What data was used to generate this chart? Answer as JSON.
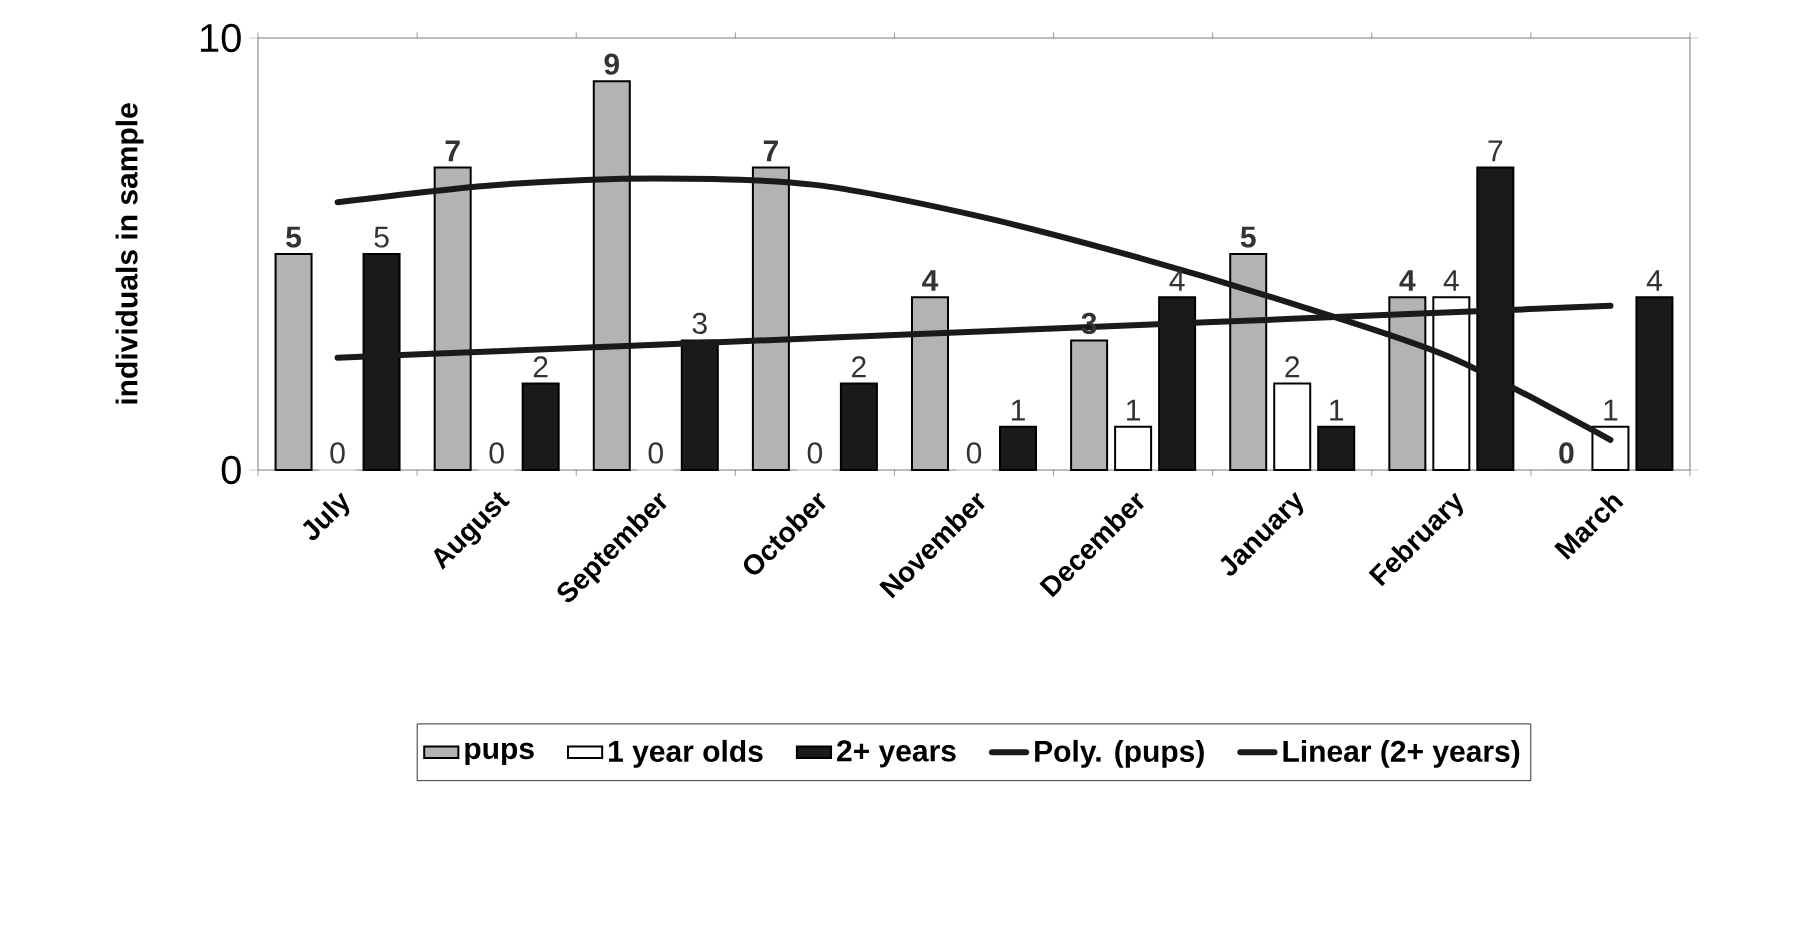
{
  "chart_data": {
    "type": "bar",
    "ylabel": "individuals in sample",
    "categories": [
      "July",
      "August",
      "September",
      "October",
      "November",
      "December",
      "January",
      "February",
      "March"
    ],
    "series": [
      {
        "name": "pups",
        "color": "#b3b3b3",
        "values": [
          5,
          7,
          9,
          7,
          4,
          3,
          5,
          4,
          0
        ],
        "value_labels": [
          "5",
          "7",
          "9",
          "7",
          "4",
          "3",
          "5",
          "4",
          "0"
        ]
      },
      {
        "name": "1 year olds",
        "color": "#ffffff",
        "values": [
          0,
          0,
          0,
          0,
          0,
          1,
          2,
          4,
          1
        ],
        "value_labels": [
          "0",
          "0",
          "0",
          "0",
          "0",
          "1",
          "2",
          "4",
          "1"
        ]
      },
      {
        "name": "2+ years",
        "color": "#1a1a1a",
        "values": [
          5,
          2,
          3,
          2,
          1,
          4,
          1,
          7,
          4
        ],
        "value_labels": [
          "5",
          "2",
          "3",
          "2",
          "1",
          "4",
          "1",
          "7",
          "4"
        ]
      },
      {
        "name": "Poly. (pups)",
        "type": "line",
        "color": "#1a1a1a",
        "values": [
          6.2,
          6.6,
          6.75,
          6.6,
          5.9,
          4.95,
          3.85,
          2.6,
          0.7
        ]
      },
      {
        "name": "Linear (2+ years)",
        "type": "line",
        "color": "#1a1a1a",
        "values": [
          2.6,
          2.75,
          2.9,
          3.05,
          3.2,
          3.35,
          3.5,
          3.65,
          3.8
        ]
      }
    ],
    "ylim": [
      0,
      10
    ],
    "yticks": [
      0,
      10
    ],
    "legend": "bottom",
    "grid": false
  }
}
